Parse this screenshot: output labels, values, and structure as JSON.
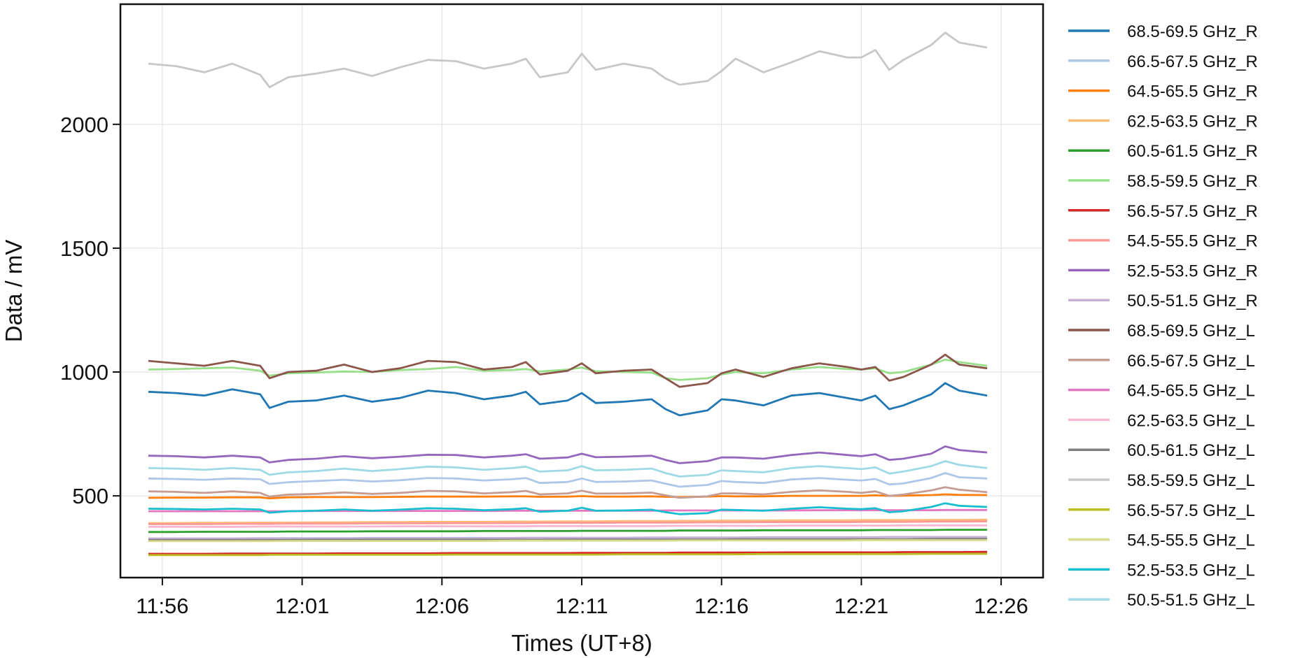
{
  "chart_data": {
    "type": "line",
    "title": "",
    "xlabel": "Times (UT+8)",
    "ylabel": "Data / mV",
    "x_ticks": [
      "11:56",
      "12:01",
      "12:06",
      "12:11",
      "12:16",
      "12:21",
      "12:26"
    ],
    "y_ticks": [
      500,
      1000,
      1500,
      2000
    ],
    "xlim": [
      "11:54:30",
      "12:27:30"
    ],
    "ylim": [
      170,
      2485
    ],
    "grid": true,
    "legend_position": "right, outside plot",
    "x": [
      "11:55:30",
      "11:56:30",
      "11:57:30",
      "11:58:30",
      "11:59:30",
      "11:59:50",
      "12:00:30",
      "12:01:30",
      "12:02:30",
      "12:03:30",
      "12:04:30",
      "12:05:30",
      "12:06:30",
      "12:07:30",
      "12:08:30",
      "12:09:00",
      "12:09:30",
      "12:10:30",
      "12:11:00",
      "12:11:30",
      "12:12:30",
      "12:13:30",
      "12:14:00",
      "12:14:30",
      "12:15:30",
      "12:16:00",
      "12:16:30",
      "12:17:30",
      "12:18:30",
      "12:19:30",
      "12:20:30",
      "12:21:00",
      "12:21:30",
      "12:22:00",
      "12:22:30",
      "12:23:30",
      "12:24:00",
      "12:24:30",
      "12:25:30"
    ],
    "series": [
      {
        "name": "68.5-69.5 GHz_R",
        "color": "#1f77b4",
        "values": [
          920,
          915,
          905,
          930,
          910,
          855,
          880,
          885,
          905,
          880,
          895,
          925,
          915,
          890,
          905,
          920,
          870,
          885,
          915,
          875,
          880,
          890,
          850,
          825,
          845,
          890,
          885,
          865,
          905,
          915,
          895,
          885,
          905,
          850,
          865,
          910,
          955,
          925,
          905
        ]
      },
      {
        "name": "66.5-67.5 GHz_R",
        "color": "#aec7e8",
        "values": [
          570,
          568,
          565,
          570,
          567,
          548,
          555,
          560,
          565,
          558,
          563,
          572,
          570,
          562,
          567,
          572,
          552,
          556,
          570,
          556,
          558,
          562,
          549,
          537,
          544,
          560,
          556,
          552,
          566,
          572,
          565,
          562,
          568,
          546,
          550,
          572,
          592,
          575,
          570
        ]
      },
      {
        "name": "64.5-65.5 GHz_R",
        "color": "#ff7f0e",
        "values": [
          492,
          493,
          493,
          494,
          494,
          490,
          494,
          495,
          495,
          495,
          496,
          497,
          497,
          497,
          498,
          498,
          496,
          497,
          499,
          497,
          497,
          498,
          496,
          495,
          497,
          499,
          498,
          498,
          500,
          500,
          500,
          500,
          502,
          500,
          501,
          503,
          506,
          504,
          503
        ]
      },
      {
        "name": "62.5-63.5 GHz_R",
        "color": "#ffbb78",
        "values": [
          390,
          390,
          391,
          391,
          392,
          392,
          392,
          393,
          393,
          394,
          394,
          395,
          395,
          395,
          396,
          396,
          396,
          397,
          397,
          397,
          398,
          398,
          398,
          399,
          399,
          400,
          400,
          400,
          401,
          401,
          401,
          402,
          402,
          402,
          402,
          403,
          403,
          403,
          404
        ]
      },
      {
        "name": "60.5-61.5 GHz_R",
        "color": "#2ca02c",
        "values": [
          354,
          354,
          355,
          355,
          355,
          355,
          356,
          356,
          356,
          357,
          357,
          357,
          357,
          358,
          358,
          358,
          358,
          358,
          359,
          359,
          359,
          359,
          359,
          360,
          360,
          360,
          360,
          361,
          361,
          361,
          361,
          361,
          362,
          362,
          362,
          362,
          363,
          363,
          363
        ]
      },
      {
        "name": "58.5-59.5 GHz_R",
        "color": "#98df8a",
        "values": [
          1010,
          1012,
          1015,
          1018,
          1005,
          985,
          995,
          998,
          1002,
          1000,
          1008,
          1012,
          1020,
          1005,
          1008,
          1012,
          1002,
          1010,
          1018,
          1003,
          1000,
          998,
          975,
          968,
          975,
          990,
          1000,
          995,
          1010,
          1020,
          1012,
          1010,
          1015,
          995,
          1000,
          1030,
          1050,
          1040,
          1025
        ]
      },
      {
        "name": "56.5-57.5 GHz_R",
        "color": "#d62728",
        "values": [
          266,
          266,
          266,
          267,
          267,
          267,
          267,
          267,
          268,
          268,
          268,
          268,
          269,
          269,
          269,
          269,
          269,
          269,
          270,
          270,
          270,
          270,
          270,
          271,
          271,
          271,
          271,
          271,
          272,
          272,
          272,
          272,
          272,
          272,
          273,
          273,
          273,
          273,
          274
        ]
      },
      {
        "name": "54.5-55.5 GHz_R",
        "color": "#ff9896",
        "values": [
          386,
          386,
          386,
          387,
          387,
          387,
          388,
          388,
          388,
          389,
          389,
          389,
          390,
          390,
          390,
          390,
          391,
          391,
          391,
          391,
          392,
          392,
          392,
          392,
          393,
          393,
          393,
          394,
          394,
          394,
          394,
          395,
          395,
          395,
          395,
          396,
          396,
          396,
          397
        ]
      },
      {
        "name": "52.5-53.5 GHz_R",
        "color": "#9467bd",
        "values": [
          662,
          660,
          655,
          662,
          655,
          635,
          645,
          650,
          660,
          652,
          658,
          666,
          665,
          655,
          662,
          668,
          650,
          655,
          670,
          656,
          658,
          662,
          645,
          632,
          640,
          655,
          655,
          650,
          665,
          675,
          665,
          660,
          668,
          645,
          650,
          670,
          700,
          685,
          675
        ]
      },
      {
        "name": "50.5-51.5 GHz_R",
        "color": "#c5b0d5",
        "values": [
          328,
          328,
          328,
          328,
          329,
          329,
          329,
          329,
          329,
          330,
          330,
          330,
          330,
          330,
          330,
          331,
          331,
          331,
          331,
          331,
          331,
          332,
          332,
          332,
          332,
          332,
          332,
          333,
          333,
          333,
          333,
          333,
          333,
          334,
          334,
          334,
          334,
          334,
          334
        ]
      },
      {
        "name": "68.5-69.5 GHz_L",
        "color": "#8c564b",
        "values": [
          1045,
          1035,
          1025,
          1045,
          1025,
          975,
          1000,
          1005,
          1030,
          1000,
          1015,
          1045,
          1040,
          1010,
          1020,
          1040,
          990,
          1005,
          1035,
          995,
          1005,
          1010,
          975,
          940,
          955,
          995,
          1010,
          980,
          1015,
          1035,
          1020,
          1010,
          1020,
          965,
          980,
          1030,
          1070,
          1030,
          1015
        ]
      },
      {
        "name": "66.5-67.5 GHz_L",
        "color": "#c49c94",
        "values": [
          518,
          516,
          512,
          518,
          512,
          497,
          505,
          508,
          514,
          508,
          512,
          520,
          518,
          510,
          515,
          520,
          506,
          510,
          521,
          509,
          510,
          513,
          502,
          492,
          498,
          510,
          510,
          506,
          516,
          522,
          516,
          512,
          518,
          500,
          505,
          522,
          535,
          525,
          515
        ]
      },
      {
        "name": "64.5-65.5 GHz_L",
        "color": "#e377c2",
        "values": [
          438,
          438,
          438,
          438,
          438,
          438,
          438,
          439,
          439,
          439,
          439,
          439,
          439,
          439,
          440,
          440,
          440,
          440,
          440,
          440,
          440,
          440,
          441,
          441,
          441,
          441,
          441,
          441,
          441,
          442,
          442,
          442,
          442,
          442,
          442,
          442,
          443,
          443,
          443
        ]
      },
      {
        "name": "62.5-63.5 GHz_L",
        "color": "#f7b6d2",
        "values": [
          375,
          375,
          375,
          375,
          376,
          376,
          376,
          376,
          376,
          376,
          377,
          377,
          377,
          377,
          377,
          377,
          378,
          378,
          378,
          378,
          378,
          378,
          379,
          379,
          379,
          379,
          379,
          379,
          380,
          380,
          380,
          380,
          380,
          380,
          381,
          381,
          381,
          381,
          381
        ]
      },
      {
        "name": "60.5-61.5 GHz_L",
        "color": "#7f7f7f",
        "values": [
          322,
          322,
          322,
          322,
          322,
          322,
          322,
          323,
          323,
          323,
          323,
          323,
          323,
          323,
          323,
          323,
          323,
          324,
          324,
          324,
          324,
          324,
          324,
          324,
          324,
          324,
          325,
          325,
          325,
          325,
          325,
          325,
          325,
          325,
          325,
          326,
          326,
          326,
          326
        ]
      },
      {
        "name": "58.5-59.5 GHz_L",
        "color": "#c7c7c7",
        "values": [
          2245,
          2235,
          2210,
          2245,
          2200,
          2150,
          2190,
          2205,
          2225,
          2195,
          2230,
          2260,
          2255,
          2225,
          2245,
          2265,
          2190,
          2210,
          2285,
          2220,
          2245,
          2225,
          2185,
          2160,
          2175,
          2215,
          2265,
          2210,
          2250,
          2295,
          2270,
          2270,
          2300,
          2220,
          2260,
          2320,
          2370,
          2330,
          2310
        ]
      },
      {
        "name": "56.5-57.5 GHz_L",
        "color": "#bcbd22",
        "values": [
          261,
          261,
          261,
          261,
          261,
          262,
          262,
          262,
          262,
          262,
          262,
          262,
          263,
          263,
          263,
          263,
          263,
          263,
          263,
          263,
          264,
          264,
          264,
          264,
          264,
          264,
          264,
          265,
          265,
          265,
          265,
          265,
          265,
          265,
          265,
          266,
          266,
          266,
          266
        ]
      },
      {
        "name": "54.5-55.5 GHz_L",
        "color": "#dbdb8d",
        "values": [
          317,
          317,
          317,
          317,
          317,
          317,
          318,
          318,
          318,
          318,
          318,
          318,
          318,
          318,
          319,
          319,
          319,
          319,
          319,
          319,
          319,
          319,
          319,
          320,
          320,
          320,
          320,
          320,
          320,
          320,
          320,
          321,
          321,
          321,
          321,
          321,
          321,
          321,
          321
        ]
      },
      {
        "name": "52.5-53.5 GHz_L",
        "color": "#17becf",
        "values": [
          448,
          447,
          445,
          448,
          445,
          432,
          438,
          440,
          445,
          440,
          444,
          450,
          448,
          442,
          446,
          450,
          436,
          440,
          452,
          440,
          441,
          444,
          434,
          426,
          430,
          444,
          443,
          440,
          448,
          454,
          448,
          446,
          450,
          434,
          438,
          455,
          470,
          460,
          455
        ]
      },
      {
        "name": "50.5-51.5 GHz_L",
        "color": "#9edae5",
        "values": [
          612,
          610,
          605,
          612,
          605,
          585,
          595,
          600,
          610,
          600,
          608,
          618,
          615,
          605,
          612,
          618,
          598,
          603,
          620,
          603,
          605,
          610,
          592,
          578,
          585,
          603,
          600,
          595,
          612,
          620,
          612,
          608,
          615,
          590,
          598,
          620,
          640,
          625,
          612
        ]
      }
    ]
  }
}
